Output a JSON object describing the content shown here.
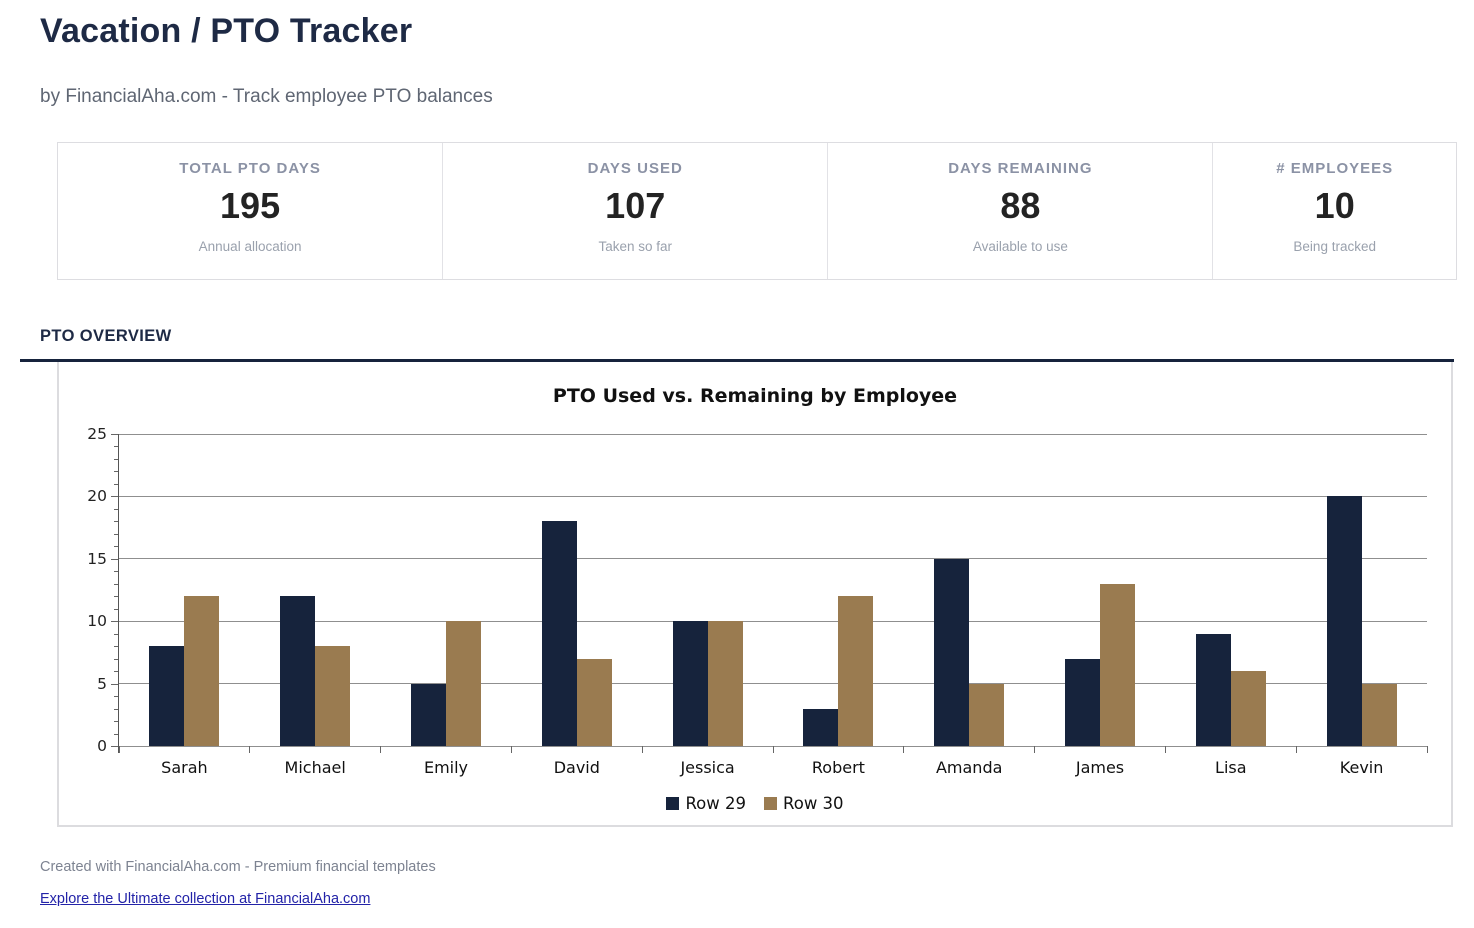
{
  "page": {
    "title": "Vacation / PTO Tracker",
    "subtitle": "by FinancialAha.com - Track employee PTO balances",
    "section_header": "PTO OVERVIEW",
    "footer_note": "Created with FinancialAha.com - Premium financial templates",
    "footer_link": "Explore the Ultimate collection at FinancialAha.com"
  },
  "stats": {
    "cards": [
      {
        "label": "TOTAL PTO DAYS",
        "value": "195",
        "sub": "Annual allocation"
      },
      {
        "label": "DAYS USED",
        "value": "107",
        "sub": "Taken so far"
      },
      {
        "label": "DAYS REMAINING",
        "value": "88",
        "sub": "Available to use"
      },
      {
        "label": "# EMPLOYEES",
        "value": "10",
        "sub": "Being tracked"
      }
    ]
  },
  "colors": {
    "navy": "#16233c",
    "tan": "#9a7b50",
    "section_rule": "#16233c",
    "gridline": "#8f8f8f",
    "link": "#2323a8"
  },
  "chart_data": {
    "type": "bar",
    "title": "PTO Used vs. Remaining by Employee",
    "categories": [
      "Sarah",
      "Michael",
      "Emily",
      "David",
      "Jessica",
      "Robert",
      "Amanda",
      "James",
      "Lisa",
      "Kevin"
    ],
    "series": [
      {
        "name": "Row 29",
        "color": "#16233c",
        "values": [
          8,
          12,
          5,
          18,
          10,
          3,
          15,
          7,
          9,
          20
        ]
      },
      {
        "name": "Row 30",
        "color": "#9a7b50",
        "values": [
          12,
          8,
          10,
          7,
          10,
          12,
          5,
          13,
          6,
          5
        ]
      }
    ],
    "xlabel": "",
    "ylabel": "",
    "ylim": [
      0,
      25
    ],
    "ytick_step": 5,
    "minor_tick_step": 1,
    "grid": true,
    "legend_position": "bottom"
  }
}
